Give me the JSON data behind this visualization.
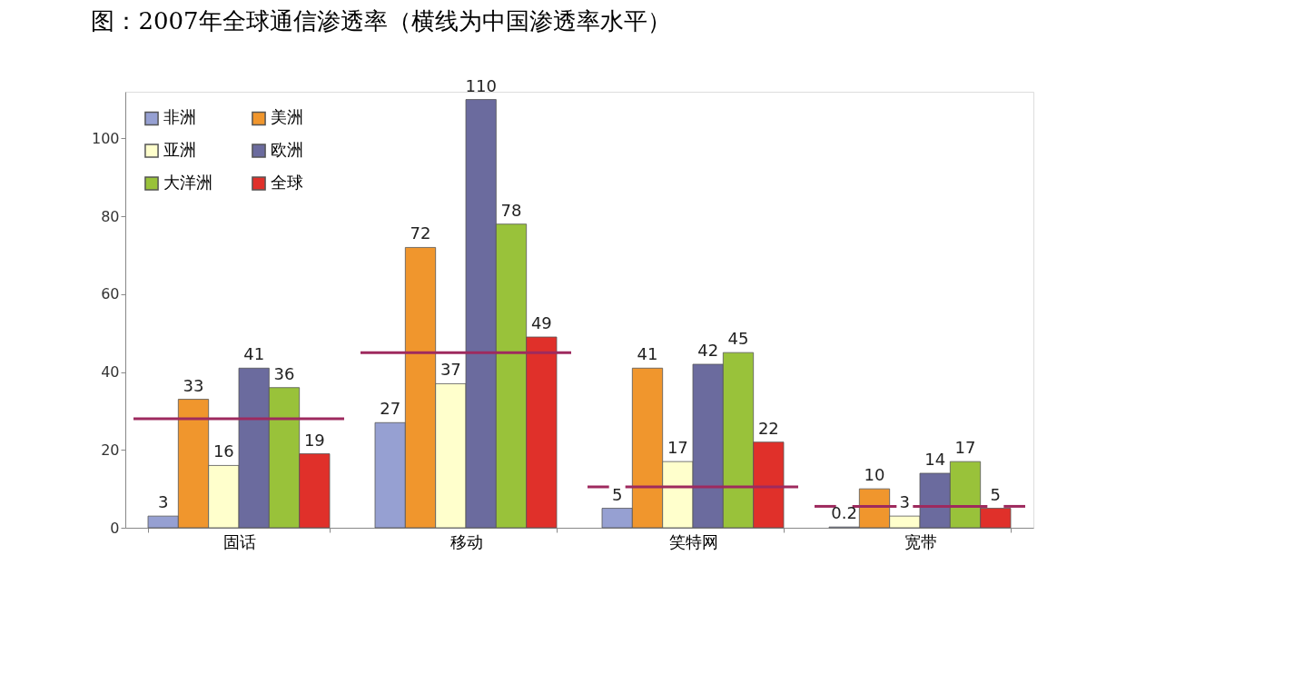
{
  "chart_data": {
    "type": "bar",
    "title": "图：2007年全球通信渗透率（横线为中国渗透率水平）",
    "categories": [
      "固话",
      "移动",
      "笑特网",
      "宽带"
    ],
    "series": [
      {
        "name": "非洲",
        "color": "#96a0d2",
        "values": [
          3,
          27,
          5,
          0.2
        ]
      },
      {
        "name": "美洲",
        "color": "#f0962d",
        "values": [
          33,
          72,
          41,
          10
        ]
      },
      {
        "name": "亚洲",
        "color": "#ffffcc",
        "values": [
          16,
          37,
          17,
          3
        ]
      },
      {
        "name": "欧洲",
        "color": "#6b6b9e",
        "values": [
          41,
          110,
          42,
          14
        ]
      },
      {
        "name": "大洋洲",
        "color": "#99c23a",
        "values": [
          36,
          78,
          45,
          17
        ]
      },
      {
        "name": "全球",
        "color": "#e0302a",
        "values": [
          19,
          49,
          22,
          5
        ]
      }
    ],
    "ref_lines": [
      {
        "axis": "y",
        "value": 28,
        "color": "#9e2a5e"
      },
      {
        "axis": "y",
        "value": 45,
        "color": "#9e2a5e"
      },
      {
        "axis": "y",
        "value": 10.5,
        "color": "#9e2a5e"
      },
      {
        "axis": "y",
        "value": 5.5,
        "color": "#9e2a5e"
      }
    ],
    "ylim": [
      0,
      112
    ],
    "yticks": [
      0,
      20,
      40,
      60,
      80,
      100
    ],
    "grid": false,
    "legend": "top left",
    "data_labels": true
  }
}
